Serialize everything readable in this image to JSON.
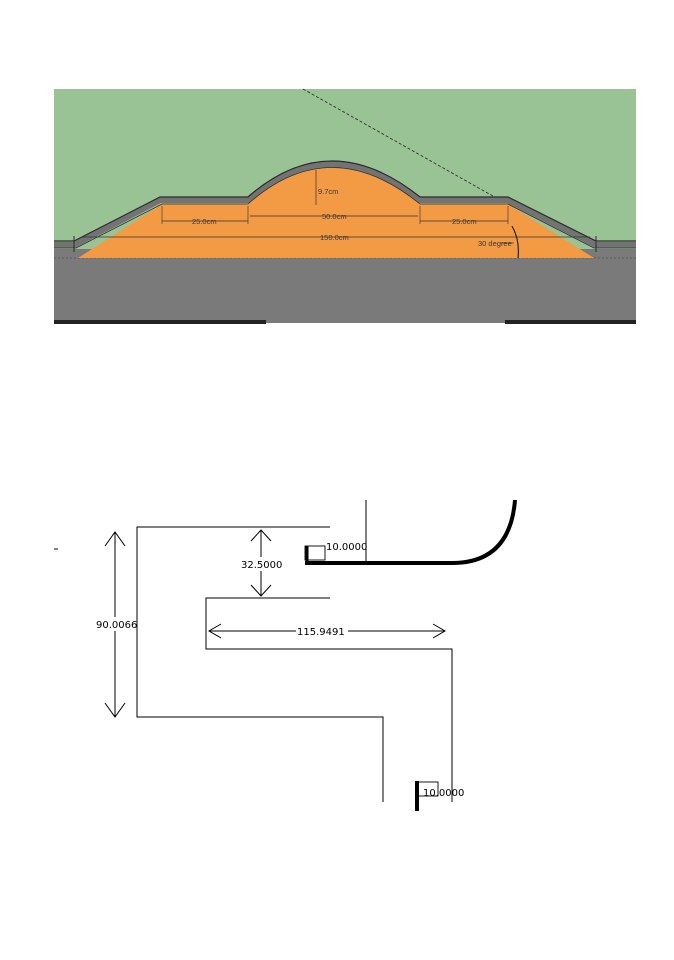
{
  "colors": {
    "sky": "#9ac395",
    "ground": "#7a7a7a",
    "fill": "#f39a45",
    "coping": "#737373",
    "line": "#000000"
  },
  "elevation": {
    "height_label": "9.7cm",
    "top_width_label": "50.0cm",
    "left_flat_label": "25.0cm",
    "right_flat_label": "25.0cm",
    "base_label": "150.0cm",
    "angle_label": "30 degree"
  },
  "plan": {
    "total_height_label": "90.0066",
    "gap_label": "32.5000",
    "width_label": "115.9491",
    "top_marker_label": "10.0000",
    "bottom_marker_label": "10.0000"
  }
}
